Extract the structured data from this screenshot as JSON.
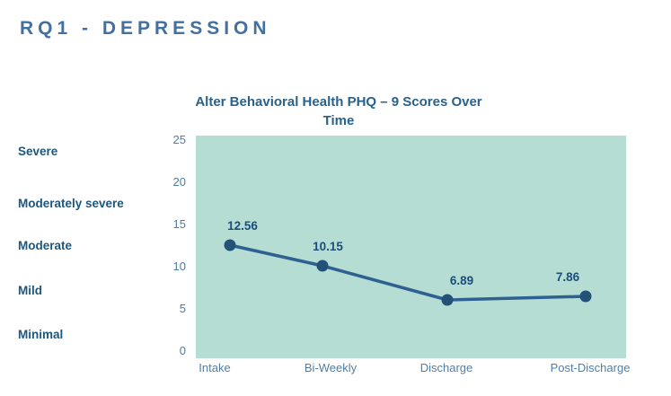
{
  "page": {
    "heading": "RQ1 - DEPRESSION"
  },
  "colors": {
    "heading": "#4170a1",
    "chart_title": "#28618c",
    "severity_label": "#1d567f",
    "tick_label": "#4f7ca3",
    "x_label": "#4e7fa8",
    "plot_background": "#b5ddd4",
    "line": "#2e6190",
    "point": "#235178",
    "data_label": "#1c4e7c",
    "page_background": "#ffffff"
  },
  "chart_data": {
    "type": "line",
    "title": "Alter Behavioral Health PHQ – 9 Scores Over Time",
    "title_lines": [
      "Alter Behavioral Health PHQ – 9 Scores Over",
      "Time"
    ],
    "categories": [
      "Intake",
      "Bi-Weekly",
      "Discharge",
      "Post-Discharge"
    ],
    "values": [
      12.56,
      10.15,
      6.89,
      7.86
    ],
    "value_labels": [
      "12.56",
      "10.15",
      "6.89",
      "7.86"
    ],
    "ylim": [
      0,
      25
    ],
    "yticks": [
      0,
      5,
      10,
      15,
      20,
      25
    ],
    "severity_scale_labels": [
      "Severe",
      "Moderately severe",
      "Moderate",
      "Mild",
      "Minimal"
    ],
    "grid": false,
    "legend": false,
    "marker": "circle"
  }
}
